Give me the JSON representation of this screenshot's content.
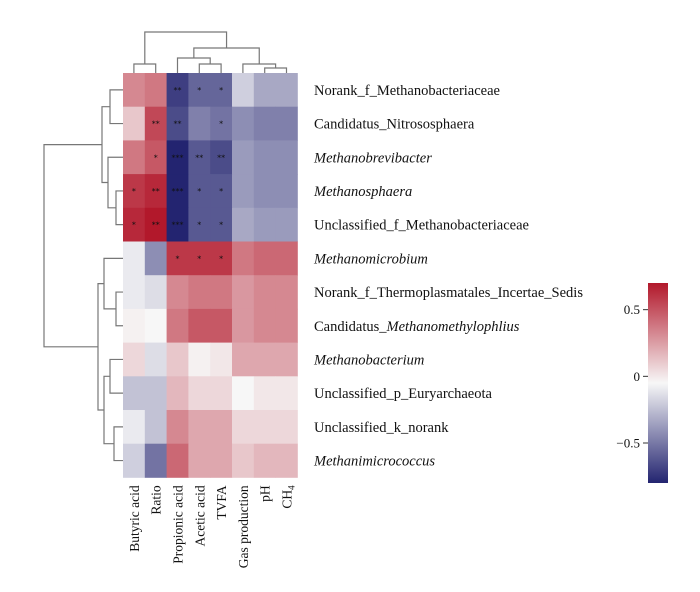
{
  "chart_data": {
    "type": "heatmap",
    "title": "",
    "rows": [
      "Norank_f_Methanobacteriaceae",
      "Candidatus_Nitrososphaera",
      "Methanobrevibacter",
      "Methanosphaera",
      "Unclassified_f_Methanobacteriaceae",
      "Methanomicrobium",
      "Norank_f_Thermoplasmatales_Incertae_Sedis",
      "Candidatus_Methanomethylophlius",
      "Methanobacterium",
      "Unclassified_p_Euryarchaeota",
      "Unclassified_k_norank",
      "Methanimicrococcus"
    ],
    "rows_display": [
      [
        {
          "t": "Norank_f_Methanobacteriaceae",
          "i": false
        }
      ],
      [
        {
          "t": "Candidatus_Nitrososphaera",
          "i": false
        }
      ],
      [
        {
          "t": "Methanobrevibacter",
          "i": true
        }
      ],
      [
        {
          "t": "Methanosphaera",
          "i": true
        }
      ],
      [
        {
          "t": "Unclassified_f_Methanobacteriaceae",
          "i": false
        }
      ],
      [
        {
          "t": "Methanomicrobium",
          "i": true
        }
      ],
      [
        {
          "t": "Norank_f_Thermoplasmatales_Incertae_Sedis",
          "i": false
        }
      ],
      [
        {
          "t": "Candidatus_",
          "i": false
        },
        {
          "t": "Methanomethylophlius",
          "i": true
        }
      ],
      [
        {
          "t": "Methanobacterium",
          "i": true
        }
      ],
      [
        {
          "t": "Unclassified_p_Euryarchaeota",
          "i": false
        }
      ],
      [
        {
          "t": "Unclassified_k_norank",
          "i": false
        }
      ],
      [
        {
          "t": "Methanimicrococcus",
          "i": true
        }
      ]
    ],
    "columns": [
      "Butyric acid",
      "Ratio",
      "Propionic acid",
      "Acetic acid",
      "TVFA",
      "Gas production",
      "pH"
    ],
    "column_last_parts": [
      "CH",
      "4"
    ],
    "values": [
      [
        0.35,
        0.4,
        -0.7,
        -0.55,
        -0.55,
        -0.15,
        -0.3,
        -0.3
      ],
      [
        0.15,
        0.55,
        -0.65,
        -0.45,
        -0.5,
        -0.4,
        -0.45,
        -0.45
      ],
      [
        0.4,
        0.5,
        -0.8,
        -0.6,
        -0.65,
        -0.35,
        -0.4,
        -0.4
      ],
      [
        0.6,
        0.65,
        -0.85,
        -0.6,
        -0.6,
        -0.35,
        -0.4,
        -0.4
      ],
      [
        0.65,
        0.7,
        -0.8,
        -0.6,
        -0.6,
        -0.3,
        -0.35,
        -0.35
      ],
      [
        -0.05,
        -0.4,
        0.6,
        0.6,
        0.6,
        0.4,
        0.45,
        0.45
      ],
      [
        -0.05,
        -0.1,
        0.35,
        0.4,
        0.4,
        0.3,
        0.35,
        0.35
      ],
      [
        0.02,
        0.0,
        0.4,
        0.5,
        0.5,
        0.3,
        0.35,
        0.35
      ],
      [
        0.1,
        -0.1,
        0.15,
        0.02,
        0.05,
        0.25,
        0.25,
        0.25
      ],
      [
        -0.2,
        -0.2,
        0.2,
        0.1,
        0.1,
        0.0,
        0.05,
        0.05
      ],
      [
        -0.05,
        -0.2,
        0.35,
        0.25,
        0.25,
        0.1,
        0.1,
        0.1
      ],
      [
        -0.15,
        -0.5,
        0.45,
        0.25,
        0.25,
        0.15,
        0.2,
        0.2
      ]
    ],
    "stars": [
      [
        "",
        "",
        "**",
        "*",
        "*",
        "",
        "",
        ""
      ],
      [
        "",
        "**",
        "**",
        "",
        "*",
        "",
        "",
        ""
      ],
      [
        "",
        "*",
        "***",
        "**",
        "**",
        "",
        "",
        ""
      ],
      [
        "*",
        "**",
        "***",
        "*",
        "*",
        "",
        "",
        ""
      ],
      [
        "*",
        "**",
        "***",
        "*",
        "*",
        "",
        "",
        ""
      ],
      [
        "",
        "",
        "*",
        "*",
        "*",
        "",
        "",
        ""
      ],
      [
        "",
        "",
        "",
        "",
        "",
        "",
        "",
        ""
      ],
      [
        "",
        "",
        "",
        "",
        "",
        "",
        "",
        ""
      ],
      [
        "",
        "",
        "",
        "",
        "",
        "",
        "",
        ""
      ],
      [
        "",
        "",
        "",
        "",
        "",
        "",
        "",
        ""
      ],
      [
        "",
        "",
        "",
        "",
        "",
        "",
        "",
        ""
      ],
      [
        "",
        "",
        "",
        "",
        "",
        "",
        "",
        ""
      ]
    ],
    "color_scale": {
      "min": -0.8,
      "max": 0.7,
      "low_color": "#232470",
      "mid_color": "#f7f7f7",
      "high_color": "#b2182b",
      "ticks": [
        0.5,
        0,
        -0.5
      ],
      "tick_labels": [
        "0.5",
        "0",
        "−0.5"
      ]
    },
    "legend_position": "right"
  }
}
